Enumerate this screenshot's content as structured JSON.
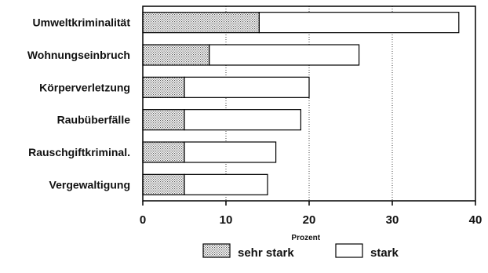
{
  "chart_data": {
    "type": "bar",
    "orientation": "horizontal",
    "stacked": true,
    "categories": [
      "Umweltkriminalität",
      "Wohnungseinbruch",
      "Körperverletzung",
      "Raubüberfälle",
      "Rauschgiftkriminal.",
      "Vergewaltigung"
    ],
    "series": [
      {
        "name": "sehr stark",
        "values": [
          14,
          8,
          5,
          5,
          5,
          5
        ],
        "pattern": "dotted"
      },
      {
        "name": "stark",
        "values": [
          24,
          18,
          15,
          14,
          11,
          10
        ],
        "pattern": "blank"
      }
    ],
    "xlabel": "Prozent",
    "xlim": [
      0,
      40
    ],
    "xticks": [
      0,
      10,
      20,
      30,
      40
    ],
    "grid": "vertical-dotted",
    "legend_position": "bottom",
    "colors": {
      "bar_fill": "#ffffff",
      "dot_fill": "#d8d8d8",
      "stroke": "#000000"
    }
  }
}
